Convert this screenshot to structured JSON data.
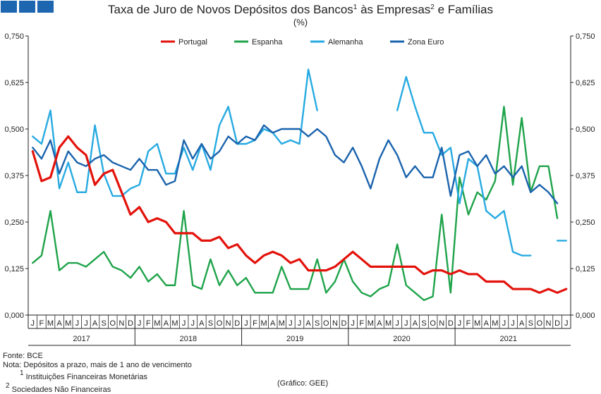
{
  "header": {
    "title_main": "Taxa de Juro de Novos Depósitos dos Bancos",
    "title_sup1": "1",
    "title_mid": " às Empresas",
    "title_sup2": "2",
    "title_end": " e Famílias",
    "subtitle": "(%)"
  },
  "footer": {
    "source": "Fonte: BCE",
    "note": "Nota: Depósitos a prazo, mais de 1 ano de vencimento",
    "note1_sup": "1",
    "note1": " Instituições Financeiras Monetárias",
    "note2_sup": "2",
    "note2": " Sociedades Não Financeiras",
    "credit": "(Gráfico: GEE)"
  },
  "chart_data": {
    "type": "line",
    "title": "Taxa de Juro de Novos Depósitos dos Bancos às Empresas e Famílias",
    "unit": "(%)",
    "ylim": [
      0,
      0.75
    ],
    "yticks": [
      "0,000",
      "0,125",
      "0,250",
      "0,375",
      "0,500",
      "0,625",
      "0,750"
    ],
    "months": [
      "J",
      "F",
      "M",
      "A",
      "M",
      "J",
      "J",
      "A",
      "S",
      "O",
      "N",
      "D"
    ],
    "years": [
      "2017",
      "2018",
      "2019",
      "2020",
      "2021"
    ],
    "legend_position": "top-center",
    "grid": false,
    "series": [
      {
        "name": "Portugal",
        "color": "#e3120b",
        "width": 3.2,
        "values": [
          0.44,
          0.36,
          0.37,
          0.45,
          0.48,
          0.45,
          0.43,
          0.35,
          0.38,
          0.39,
          0.33,
          0.27,
          0.29,
          0.25,
          0.26,
          0.25,
          0.22,
          0.22,
          0.22,
          0.2,
          0.2,
          0.21,
          0.18,
          0.19,
          0.16,
          0.14,
          0.16,
          0.17,
          0.16,
          0.14,
          0.15,
          0.12,
          0.12,
          0.12,
          0.13,
          0.15,
          0.17,
          0.15,
          0.13,
          0.13,
          0.13,
          0.13,
          0.13,
          0.13,
          0.11,
          0.12,
          0.12,
          0.11,
          0.12,
          0.11,
          0.11,
          0.09,
          0.09,
          0.09,
          0.07,
          0.07,
          0.07,
          0.06,
          0.07,
          0.06,
          0.07
        ]
      },
      {
        "name": "Espanha",
        "color": "#1fa34a",
        "width": 2.4,
        "values": [
          0.14,
          0.16,
          0.28,
          0.12,
          0.14,
          0.14,
          0.13,
          0.15,
          0.17,
          0.13,
          0.12,
          0.1,
          0.13,
          0.09,
          0.11,
          0.08,
          0.08,
          0.28,
          0.08,
          0.07,
          0.15,
          0.08,
          0.12,
          0.08,
          0.1,
          0.06,
          0.06,
          0.06,
          0.13,
          0.07,
          0.07,
          0.07,
          0.15,
          0.06,
          0.09,
          0.15,
          0.09,
          0.06,
          0.05,
          0.07,
          0.08,
          0.19,
          0.08,
          0.06,
          0.04,
          0.05,
          0.27,
          0.06,
          0.37,
          0.27,
          0.33,
          0.31,
          0.36,
          0.56,
          0.35,
          0.53,
          0.33,
          0.4,
          0.4,
          0.26,
          null
        ]
      },
      {
        "name": "Alemanha",
        "color": "#27aae1",
        "width": 2.4,
        "values": [
          0.48,
          0.46,
          0.55,
          0.34,
          0.41,
          0.33,
          0.33,
          0.51,
          0.38,
          0.32,
          0.32,
          0.34,
          0.35,
          0.44,
          0.46,
          0.38,
          0.38,
          0.45,
          0.39,
          0.46,
          0.39,
          0.51,
          0.56,
          0.46,
          0.46,
          0.47,
          0.5,
          0.49,
          0.46,
          0.47,
          0.46,
          0.66,
          0.55,
          null,
          null,
          null,
          null,
          null,
          null,
          null,
          null,
          0.55,
          0.64,
          0.56,
          0.49,
          0.49,
          0.43,
          0.45,
          0.3,
          0.42,
          0.4,
          0.28,
          0.26,
          0.28,
          0.17,
          0.16,
          0.16,
          null,
          null,
          0.2,
          0.2
        ]
      },
      {
        "name": "Zona Euro",
        "color": "#1a63ad",
        "width": 2.4,
        "values": [
          0.45,
          0.42,
          0.47,
          0.38,
          0.44,
          0.41,
          0.4,
          0.42,
          0.43,
          0.41,
          0.4,
          0.39,
          0.42,
          0.39,
          0.39,
          0.35,
          0.36,
          0.47,
          0.42,
          0.46,
          0.42,
          0.44,
          0.48,
          0.46,
          0.48,
          0.47,
          0.51,
          0.49,
          0.5,
          0.5,
          0.5,
          0.48,
          0.5,
          0.48,
          0.43,
          0.41,
          0.45,
          0.4,
          0.34,
          0.42,
          0.47,
          0.43,
          0.37,
          0.4,
          0.37,
          0.37,
          0.45,
          0.32,
          0.43,
          0.44,
          0.4,
          0.43,
          0.38,
          0.4,
          0.37,
          0.4,
          0.33,
          0.35,
          0.33,
          0.3,
          null
        ]
      }
    ]
  }
}
